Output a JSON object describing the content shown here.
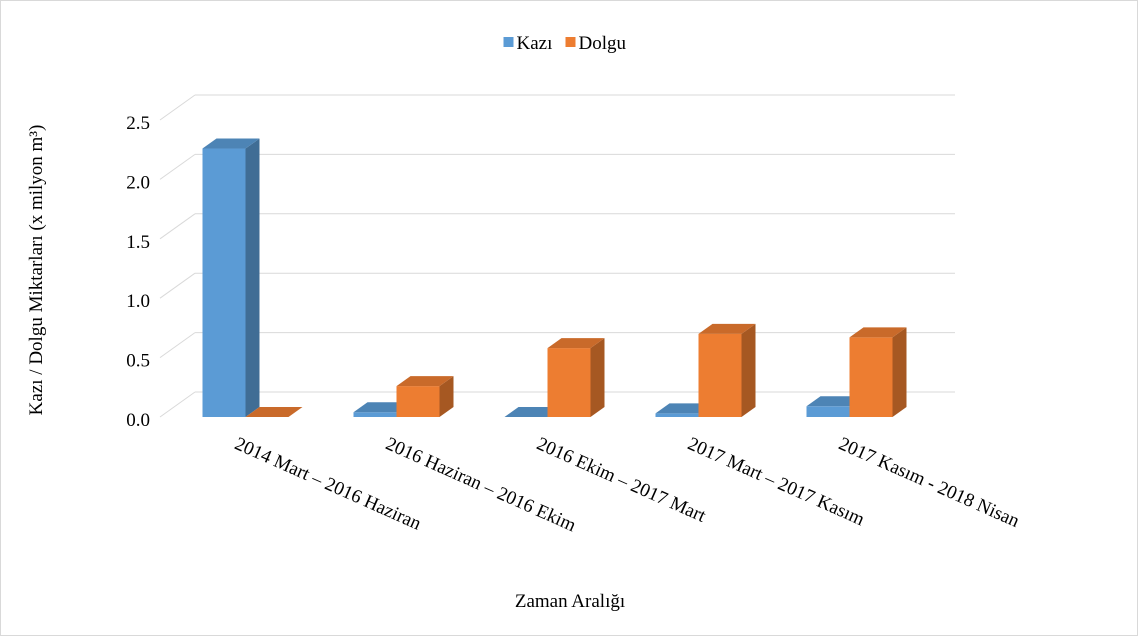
{
  "chart_data": {
    "type": "bar3d",
    "categories": [
      "2014 Mart – 2016 Haziran",
      "2016 Haziran – 2016 Ekim",
      "2016 Ekim – 2017  Mart",
      "2017 Mart – 2017 Kasım",
      "2017 Kasım  - 2018 Nisan"
    ],
    "series": [
      {
        "name": "Kazı",
        "color": "#5b9bd5",
        "values": [
          2.26,
          0.04,
          0.0,
          0.03,
          0.09
        ]
      },
      {
        "name": "Dolgu",
        "color": "#ed7d31",
        "values": [
          0.0,
          0.26,
          0.58,
          0.7,
          0.67
        ]
      }
    ],
    "ylim": [
      0,
      2.5
    ],
    "yticks": [
      {
        "value": 0,
        "label": "0.0"
      },
      0.5,
      {
        "value": 1,
        "label": "1.0"
      },
      1.5,
      {
        "value": 2,
        "label": "2.0"
      },
      2.5
    ],
    "ylabel": "Kazı / Dolgu Miktarları (x milyon m³)",
    "xlabel": "Zaman Aralığı",
    "grid": true,
    "legend": "top"
  }
}
